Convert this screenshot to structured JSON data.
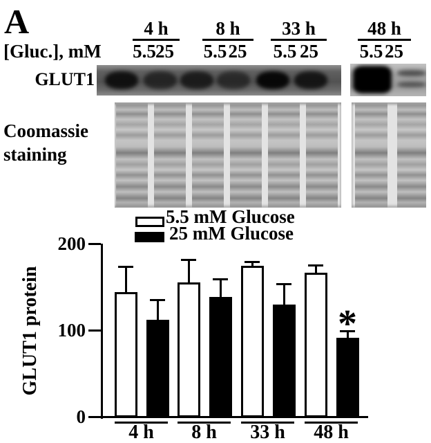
{
  "panel_label": "A",
  "blot": {
    "gluc_label": "[Gluc.], mM",
    "time_groups": [
      "4 h",
      "8 h",
      "33 h",
      "48 h"
    ],
    "conc_labels": [
      "5.5",
      "25"
    ],
    "glut1_label": "GLUT1",
    "coomassie_label": [
      "Coomassie",
      "staining"
    ],
    "glut1_band_intensities": [
      [
        0.85,
        0.6
      ],
      [
        0.72,
        0.55
      ],
      [
        0.97,
        0.8
      ],
      [
        1.0,
        0.6
      ]
    ]
  },
  "chart_data": {
    "type": "bar",
    "categories": [
      "4 h",
      "8 h",
      "33 h",
      "48 h"
    ],
    "series": [
      {
        "name": "5.5 mM Glucose",
        "color": "#ffffff",
        "values": [
          145,
          156,
          175,
          167
        ],
        "errors_plus": [
          29,
          26,
          5,
          9
        ]
      },
      {
        "name": "25 mM Glucose",
        "color": "#000000",
        "values": [
          113,
          139,
          130,
          92
        ],
        "errors_plus": [
          23,
          21,
          24,
          8
        ]
      }
    ],
    "ylabel": "GLUT1 protein",
    "yticks": [
      0,
      100,
      200
    ],
    "ylim": [
      0,
      200
    ],
    "grid": false,
    "legend_position": "top",
    "annotations": [
      {
        "text": "*",
        "category": "48 h",
        "series": "25 mM Glucose",
        "meaning": "statistically significant"
      }
    ]
  }
}
